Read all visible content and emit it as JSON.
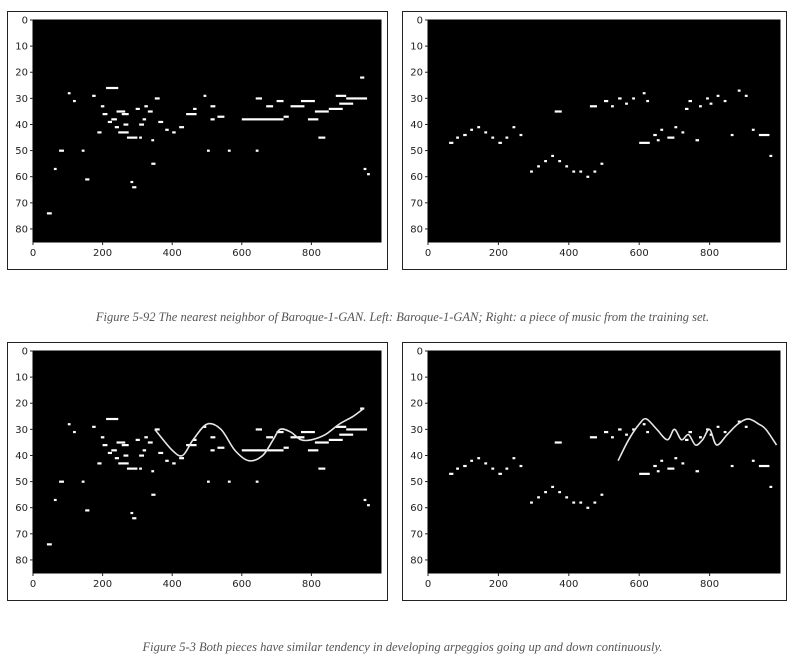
{
  "captions": {
    "top": "Figure 5-92 The nearest neighbor of Baroque-1-GAN. Left: Baroque-1-GAN; Right: a piece of music from the training set.",
    "bottom": "Figure 5-3 Both pieces have similar tendency in developing arpeggios going up and down continuously."
  },
  "colors": {
    "background": "#000000",
    "note": "#ffffff",
    "frame": "#222222"
  },
  "chart_data": [
    {
      "id": "gan-top",
      "type": "heatmap",
      "xlim": [
        0,
        1000
      ],
      "ylim": [
        85,
        0
      ],
      "xticks": [
        0,
        200,
        400,
        600,
        800
      ],
      "yticks": [
        0,
        10,
        20,
        30,
        40,
        50,
        60,
        70,
        80
      ],
      "notes": [
        [
          40,
          74,
          14
        ],
        [
          60,
          57,
          8
        ],
        [
          75,
          50,
          14
        ],
        [
          100,
          28,
          8
        ],
        [
          115,
          31,
          8
        ],
        [
          140,
          50,
          8
        ],
        [
          150,
          61,
          12
        ],
        [
          170,
          29,
          10
        ],
        [
          185,
          43,
          12
        ],
        [
          195,
          33,
          10
        ],
        [
          200,
          36,
          14
        ],
        [
          210,
          26,
          35
        ],
        [
          215,
          39,
          12
        ],
        [
          225,
          38,
          16
        ],
        [
          235,
          41,
          12
        ],
        [
          240,
          35,
          25
        ],
        [
          245,
          43,
          30
        ],
        [
          255,
          36,
          20
        ],
        [
          260,
          40,
          14
        ],
        [
          270,
          45,
          30
        ],
        [
          280,
          62,
          8
        ],
        [
          285,
          64,
          12
        ],
        [
          295,
          34,
          12
        ],
        [
          305,
          45,
          8
        ],
        [
          305,
          40,
          14
        ],
        [
          315,
          38,
          10
        ],
        [
          320,
          33,
          10
        ],
        [
          330,
          35,
          14
        ],
        [
          340,
          55,
          12
        ],
        [
          340,
          46,
          8
        ],
        [
          350,
          30,
          14
        ],
        [
          360,
          39,
          14
        ],
        [
          380,
          42,
          10
        ],
        [
          400,
          43,
          10
        ],
        [
          420,
          41,
          14
        ],
        [
          440,
          36,
          30
        ],
        [
          460,
          34,
          10
        ],
        [
          490,
          29,
          8
        ],
        [
          500,
          50,
          8
        ],
        [
          510,
          33,
          14
        ],
        [
          510,
          38,
          12
        ],
        [
          530,
          37,
          20
        ],
        [
          560,
          50,
          8
        ],
        [
          600,
          38,
          120
        ],
        [
          640,
          30,
          18
        ],
        [
          640,
          50,
          8
        ],
        [
          670,
          33,
          20
        ],
        [
          700,
          31,
          20
        ],
        [
          720,
          37,
          15
        ],
        [
          740,
          33,
          40
        ],
        [
          770,
          31,
          40
        ],
        [
          790,
          38,
          30
        ],
        [
          810,
          35,
          40
        ],
        [
          820,
          45,
          20
        ],
        [
          850,
          34,
          40
        ],
        [
          870,
          29,
          30
        ],
        [
          880,
          32,
          40
        ],
        [
          900,
          30,
          60
        ],
        [
          940,
          22,
          12
        ],
        [
          950,
          57,
          8
        ],
        [
          960,
          59,
          8
        ]
      ]
    },
    {
      "id": "train-top",
      "type": "heatmap",
      "xlim": [
        0,
        1000
      ],
      "ylim": [
        85,
        0
      ],
      "xticks": [
        0,
        200,
        400,
        600,
        800
      ],
      "yticks": [
        0,
        10,
        20,
        30,
        40,
        50,
        60,
        70,
        80
      ],
      "notes": [
        [
          60,
          47,
          12
        ],
        [
          80,
          45,
          8
        ],
        [
          100,
          44,
          10
        ],
        [
          120,
          42,
          8
        ],
        [
          140,
          41,
          8
        ],
        [
          160,
          43,
          8
        ],
        [
          180,
          45,
          8
        ],
        [
          200,
          47,
          10
        ],
        [
          220,
          45,
          8
        ],
        [
          240,
          41,
          8
        ],
        [
          260,
          44,
          8
        ],
        [
          290,
          58,
          8
        ],
        [
          310,
          56,
          8
        ],
        [
          330,
          54,
          8
        ],
        [
          350,
          52,
          8
        ],
        [
          360,
          35,
          20
        ],
        [
          370,
          54,
          8
        ],
        [
          390,
          56,
          8
        ],
        [
          410,
          58,
          8
        ],
        [
          430,
          58,
          8
        ],
        [
          450,
          60,
          8
        ],
        [
          460,
          33,
          20
        ],
        [
          470,
          58,
          8
        ],
        [
          490,
          55,
          8
        ],
        [
          500,
          31,
          12
        ],
        [
          520,
          33,
          8
        ],
        [
          540,
          30,
          10
        ],
        [
          560,
          32,
          8
        ],
        [
          580,
          30,
          8
        ],
        [
          600,
          47,
          30
        ],
        [
          610,
          28,
          8
        ],
        [
          620,
          31,
          8
        ],
        [
          640,
          44,
          10
        ],
        [
          650,
          46,
          8
        ],
        [
          660,
          42,
          8
        ],
        [
          680,
          45,
          20
        ],
        [
          700,
          41,
          8
        ],
        [
          720,
          43,
          8
        ],
        [
          730,
          34,
          10
        ],
        [
          740,
          31,
          10
        ],
        [
          760,
          46,
          10
        ],
        [
          770,
          33,
          8
        ],
        [
          790,
          30,
          8
        ],
        [
          800,
          32,
          8
        ],
        [
          820,
          29,
          8
        ],
        [
          840,
          31,
          8
        ],
        [
          860,
          44,
          8
        ],
        [
          880,
          27,
          8
        ],
        [
          900,
          29,
          8
        ],
        [
          920,
          42,
          8
        ],
        [
          940,
          44,
          30
        ],
        [
          970,
          52,
          8
        ]
      ]
    },
    {
      "id": "gan-bottom",
      "type": "heatmap",
      "xlim": [
        0,
        1000
      ],
      "ylim": [
        85,
        0
      ],
      "xticks": [
        0,
        200,
        400,
        600,
        800
      ],
      "yticks": [
        0,
        10,
        20,
        30,
        40,
        50,
        60,
        70,
        80
      ],
      "notes": [
        [
          40,
          74,
          14
        ],
        [
          60,
          57,
          8
        ],
        [
          75,
          50,
          14
        ],
        [
          100,
          28,
          8
        ],
        [
          115,
          31,
          8
        ],
        [
          140,
          50,
          8
        ],
        [
          150,
          61,
          12
        ],
        [
          170,
          29,
          10
        ],
        [
          185,
          43,
          12
        ],
        [
          195,
          33,
          10
        ],
        [
          200,
          36,
          14
        ],
        [
          210,
          26,
          35
        ],
        [
          215,
          39,
          12
        ],
        [
          225,
          38,
          16
        ],
        [
          235,
          41,
          12
        ],
        [
          240,
          35,
          25
        ],
        [
          245,
          43,
          30
        ],
        [
          255,
          36,
          20
        ],
        [
          260,
          40,
          14
        ],
        [
          270,
          45,
          30
        ],
        [
          280,
          62,
          8
        ],
        [
          285,
          64,
          12
        ],
        [
          295,
          34,
          12
        ],
        [
          305,
          45,
          8
        ],
        [
          305,
          40,
          14
        ],
        [
          315,
          38,
          10
        ],
        [
          320,
          33,
          10
        ],
        [
          330,
          35,
          14
        ],
        [
          340,
          55,
          12
        ],
        [
          340,
          46,
          8
        ],
        [
          350,
          30,
          14
        ],
        [
          360,
          39,
          14
        ],
        [
          380,
          42,
          10
        ],
        [
          400,
          43,
          10
        ],
        [
          420,
          41,
          14
        ],
        [
          440,
          36,
          30
        ],
        [
          460,
          34,
          10
        ],
        [
          490,
          29,
          8
        ],
        [
          500,
          50,
          8
        ],
        [
          510,
          33,
          14
        ],
        [
          510,
          38,
          12
        ],
        [
          530,
          37,
          20
        ],
        [
          560,
          50,
          8
        ],
        [
          600,
          38,
          120
        ],
        [
          640,
          30,
          18
        ],
        [
          640,
          50,
          8
        ],
        [
          670,
          33,
          20
        ],
        [
          700,
          31,
          20
        ],
        [
          720,
          37,
          15
        ],
        [
          740,
          33,
          40
        ],
        [
          770,
          31,
          40
        ],
        [
          790,
          38,
          30
        ],
        [
          810,
          35,
          40
        ],
        [
          820,
          45,
          20
        ],
        [
          850,
          34,
          40
        ],
        [
          870,
          29,
          30
        ],
        [
          880,
          32,
          40
        ],
        [
          900,
          30,
          60
        ],
        [
          940,
          22,
          12
        ],
        [
          950,
          57,
          8
        ],
        [
          960,
          59,
          8
        ]
      ],
      "curve": [
        [
          350,
          30
        ],
        [
          400,
          38
        ],
        [
          430,
          40
        ],
        [
          460,
          34
        ],
        [
          500,
          28
        ],
        [
          540,
          30
        ],
        [
          580,
          38
        ],
        [
          620,
          42
        ],
        [
          660,
          40
        ],
        [
          690,
          34
        ],
        [
          710,
          30
        ],
        [
          740,
          31
        ],
        [
          770,
          34
        ],
        [
          800,
          34
        ],
        [
          840,
          32
        ],
        [
          880,
          28
        ],
        [
          920,
          25
        ],
        [
          950,
          22
        ]
      ]
    },
    {
      "id": "train-bottom",
      "type": "heatmap",
      "xlim": [
        0,
        1000
      ],
      "ylim": [
        85,
        0
      ],
      "xticks": [
        0,
        200,
        400,
        600,
        800
      ],
      "yticks": [
        0,
        10,
        20,
        30,
        40,
        50,
        60,
        70,
        80
      ],
      "notes": [
        [
          60,
          47,
          12
        ],
        [
          80,
          45,
          8
        ],
        [
          100,
          44,
          10
        ],
        [
          120,
          42,
          8
        ],
        [
          140,
          41,
          8
        ],
        [
          160,
          43,
          8
        ],
        [
          180,
          45,
          8
        ],
        [
          200,
          47,
          10
        ],
        [
          220,
          45,
          8
        ],
        [
          240,
          41,
          8
        ],
        [
          260,
          44,
          8
        ],
        [
          290,
          58,
          8
        ],
        [
          310,
          56,
          8
        ],
        [
          330,
          54,
          8
        ],
        [
          350,
          52,
          8
        ],
        [
          360,
          35,
          20
        ],
        [
          370,
          54,
          8
        ],
        [
          390,
          56,
          8
        ],
        [
          410,
          58,
          8
        ],
        [
          430,
          58,
          8
        ],
        [
          450,
          60,
          8
        ],
        [
          460,
          33,
          20
        ],
        [
          470,
          58,
          8
        ],
        [
          490,
          55,
          8
        ],
        [
          500,
          31,
          12
        ],
        [
          520,
          33,
          8
        ],
        [
          540,
          30,
          10
        ],
        [
          560,
          32,
          8
        ],
        [
          580,
          30,
          8
        ],
        [
          600,
          47,
          30
        ],
        [
          610,
          28,
          8
        ],
        [
          620,
          31,
          8
        ],
        [
          640,
          44,
          10
        ],
        [
          650,
          46,
          8
        ],
        [
          660,
          42,
          8
        ],
        [
          680,
          45,
          20
        ],
        [
          700,
          41,
          8
        ],
        [
          720,
          43,
          8
        ],
        [
          730,
          34,
          10
        ],
        [
          740,
          31,
          10
        ],
        [
          760,
          46,
          10
        ],
        [
          770,
          33,
          8
        ],
        [
          790,
          30,
          8
        ],
        [
          800,
          32,
          8
        ],
        [
          820,
          29,
          8
        ],
        [
          840,
          31,
          8
        ],
        [
          860,
          44,
          8
        ],
        [
          880,
          27,
          8
        ],
        [
          900,
          29,
          8
        ],
        [
          920,
          42,
          8
        ],
        [
          940,
          44,
          30
        ],
        [
          970,
          52,
          8
        ]
      ],
      "curve": [
        [
          540,
          42
        ],
        [
          570,
          34
        ],
        [
          600,
          28
        ],
        [
          620,
          26
        ],
        [
          650,
          30
        ],
        [
          680,
          34
        ],
        [
          700,
          30
        ],
        [
          720,
          34
        ],
        [
          740,
          32
        ],
        [
          760,
          36
        ],
        [
          780,
          34
        ],
        [
          800,
          30
        ],
        [
          820,
          36
        ],
        [
          850,
          32
        ],
        [
          880,
          28
        ],
        [
          910,
          26
        ],
        [
          940,
          28
        ],
        [
          960,
          30
        ],
        [
          990,
          36
        ]
      ]
    }
  ]
}
